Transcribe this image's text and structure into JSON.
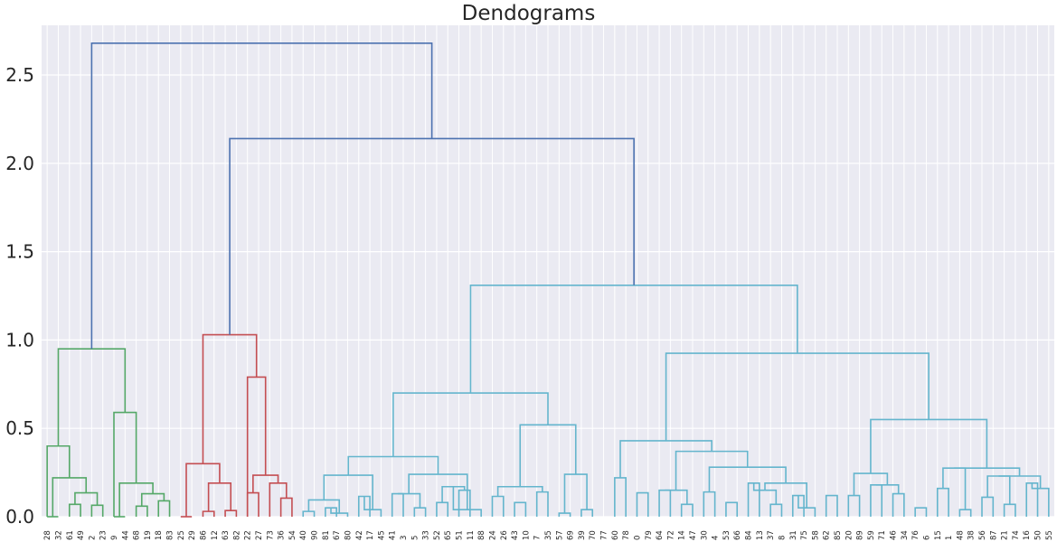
{
  "chart_data": {
    "type": "dendrogram",
    "title": "Dendograms",
    "xlabel": "",
    "ylabel": "",
    "ylim": [
      0,
      2.8
    ],
    "yticks": [
      0.0,
      0.5,
      1.0,
      1.5,
      2.0,
      2.5
    ],
    "ytick_labels": [
      "0.0",
      "0.5",
      "1.0",
      "1.5",
      "2.0",
      "2.5"
    ],
    "grid": true,
    "background": "#eaeaf2",
    "grid_color": "#ffffff",
    "cluster_colors": {
      "green": "#55a868",
      "red": "#c44e52",
      "cyan": "#64b5cd",
      "above_threshold": "#4c72b0"
    },
    "leaves": [
      "28",
      "32",
      "61",
      "49",
      "2",
      "23",
      "9",
      "44",
      "68",
      "19",
      "18",
      "83",
      "25",
      "29",
      "86",
      "12",
      "63",
      "82",
      "22",
      "27",
      "73",
      "36",
      "54",
      "40",
      "90",
      "81",
      "67",
      "80",
      "42",
      "17",
      "45",
      "41",
      "3",
      "5",
      "33",
      "52",
      "65",
      "51",
      "11",
      "88",
      "24",
      "26",
      "43",
      "10",
      "7",
      "35",
      "57",
      "69",
      "39",
      "70",
      "77",
      "60",
      "78",
      "0",
      "79",
      "64",
      "72",
      "14",
      "47",
      "30",
      "4",
      "53",
      "66",
      "84",
      "13",
      "37",
      "8",
      "31",
      "75",
      "58",
      "62",
      "85",
      "20",
      "89",
      "59",
      "71",
      "46",
      "34",
      "76",
      "6",
      "15",
      "1",
      "48",
      "38",
      "56",
      "87",
      "21",
      "74",
      "16",
      "50",
      "55"
    ],
    "merges": [
      {
        "a": "28",
        "b": "32",
        "h": 0.0,
        "c": "green"
      },
      {
        "a": "61",
        "b": "49",
        "h": 0.07,
        "c": "green"
      },
      {
        "a": "2",
        "b": "23",
        "h": 0.065,
        "c": "green"
      },
      {
        "a": [
          "61",
          "49"
        ],
        "b": [
          "2",
          "23"
        ],
        "h": 0.135,
        "c": "green"
      },
      {
        "a": [
          "28",
          "32"
        ],
        "b": [
          "61",
          "49",
          "2",
          "23"
        ],
        "h": 0.22,
        "c": "green"
      },
      {
        "a": "9",
        "b": "44",
        "h": 0.0,
        "c": "green"
      },
      {
        "a": "68",
        "b": "19",
        "h": 0.06,
        "c": "green"
      },
      {
        "a": "18",
        "b": "83",
        "h": 0.09,
        "c": "green"
      },
      {
        "a": [
          "68",
          "19"
        ],
        "b": [
          "18",
          "83"
        ],
        "h": 0.13,
        "c": "green"
      },
      {
        "a": [
          "9",
          "44"
        ],
        "b": [
          "68",
          "19",
          "18",
          "83"
        ],
        "h": 0.19,
        "c": "green"
      },
      {
        "a": "green_left",
        "b": "green_right",
        "h": 0.4,
        "c": "green"
      },
      {
        "a": "green_pre",
        "b": "green_post",
        "h": 0.59,
        "c": "green"
      },
      {
        "a": "green_all",
        "b": "",
        "h": 0.95,
        "c": "green"
      },
      {
        "a": "25",
        "b": "29",
        "h": 0.0,
        "c": "red"
      },
      {
        "a": "86",
        "b": "12",
        "h": 0.03,
        "c": "red"
      },
      {
        "a": "63",
        "b": "82",
        "h": 0.035,
        "c": "red"
      },
      {
        "a": [
          "86",
          "12"
        ],
        "b": [
          "63",
          "82"
        ],
        "h": 0.19,
        "c": "red"
      },
      {
        "a": [
          "25",
          "29"
        ],
        "b": [
          "86",
          "12",
          "63",
          "82"
        ],
        "h": 0.3,
        "c": "red"
      },
      {
        "a": "22",
        "b": "27",
        "h": 0.135,
        "c": "red"
      },
      {
        "a": "36",
        "b": "54",
        "h": 0.105,
        "c": "red"
      },
      {
        "a": "73",
        "b": [
          "36",
          "54"
        ],
        "h": 0.19,
        "c": "red"
      },
      {
        "a": [
          "22",
          "27"
        ],
        "b": [
          "73",
          "36",
          "54"
        ],
        "h": 0.235,
        "c": "red"
      },
      {
        "a": "red_right",
        "b": "",
        "h": 0.79,
        "c": "red"
      },
      {
        "a": "red_all",
        "b": "",
        "h": 1.03,
        "c": "red"
      },
      {
        "a": "cyan_left",
        "b": "cyan_right",
        "h": 1.31,
        "c": "cyan"
      },
      {
        "a": "red_cluster",
        "b": "cyan_cluster",
        "h": 2.14,
        "c": "above_threshold"
      },
      {
        "a": "green_cluster",
        "b": "rest",
        "h": 2.68,
        "c": "above_threshold"
      }
    ]
  }
}
